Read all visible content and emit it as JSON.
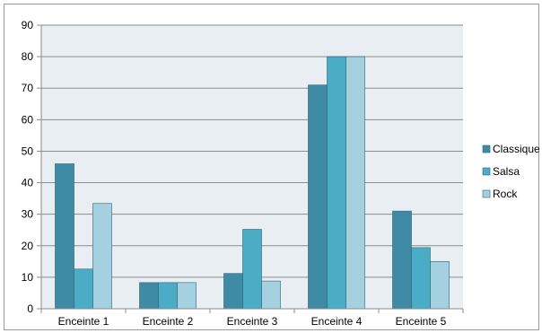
{
  "chart_data": {
    "type": "bar",
    "categories": [
      "Enceinte 1",
      "Enceinte 2",
      "Enceinte 3",
      "Enceinte 4",
      "Enceinte 5"
    ],
    "series": [
      {
        "name": "Classique",
        "values": [
          46,
          8.3,
          11.2,
          71,
          31
        ],
        "color": "#3f8aa5"
      },
      {
        "name": "Salsa",
        "values": [
          12.6,
          8.3,
          25.2,
          80,
          19.4
        ],
        "color": "#4bacc6"
      },
      {
        "name": "Rock",
        "values": [
          33.4,
          8.3,
          8.8,
          80,
          15
        ],
        "color": "#a5d0df"
      }
    ],
    "ylim": [
      0,
      90
    ],
    "yticks": [
      "0",
      "10",
      "20",
      "30",
      "40",
      "50",
      "60",
      "70",
      "80",
      "90"
    ],
    "grid": true,
    "legend_position": "right",
    "plot_background": "#e9eef2",
    "xlabel": "",
    "ylabel": "",
    "title": ""
  }
}
